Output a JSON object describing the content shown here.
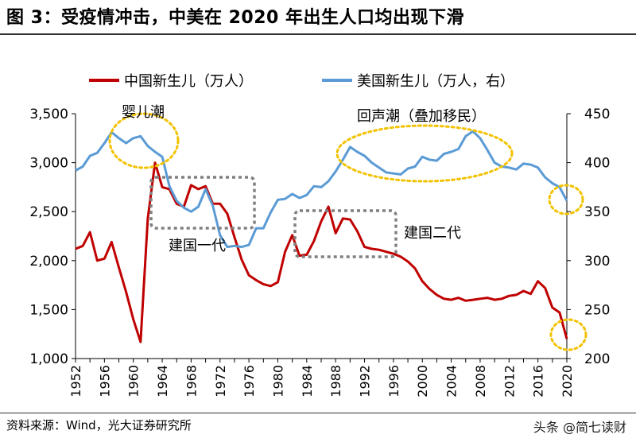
{
  "title": "图 3：受疫情冲击，中美在 2020 年出生人口均出现下滑",
  "source": "资料来源：Wind，光大证券研究所",
  "watermark": "头条 @简七读财",
  "colors": {
    "china": "#c00000",
    "us": "#5b9bd5",
    "highlight": "#f2c200",
    "box": "#808080"
  },
  "chart_data": {
    "type": "line",
    "x": [
      1952,
      1953,
      1954,
      1955,
      1956,
      1957,
      1958,
      1959,
      1960,
      1961,
      1962,
      1963,
      1964,
      1965,
      1966,
      1967,
      1968,
      1969,
      1970,
      1971,
      1972,
      1973,
      1974,
      1975,
      1976,
      1977,
      1978,
      1979,
      1980,
      1981,
      1982,
      1983,
      1984,
      1985,
      1986,
      1987,
      1988,
      1989,
      1990,
      1991,
      1992,
      1993,
      1994,
      1995,
      1996,
      1997,
      1998,
      1999,
      2000,
      2001,
      2002,
      2003,
      2004,
      2005,
      2006,
      2007,
      2008,
      2009,
      2010,
      2011,
      2012,
      2013,
      2014,
      2015,
      2016,
      2017,
      2018,
      2019,
      2020
    ],
    "x_ticks": [
      "1952",
      "1956",
      "1960",
      "1964",
      "1968",
      "1972",
      "1976",
      "1980",
      "1984",
      "1988",
      "1992",
      "1996",
      "2000",
      "2004",
      "2008",
      "2012",
      "2016",
      "2020"
    ],
    "y_left": {
      "ticks": [
        "1,000",
        "1,500",
        "2,000",
        "2,500",
        "3,000",
        "3,500"
      ],
      "lim": [
        1000,
        3500
      ]
    },
    "y_right": {
      "ticks": [
        "200",
        "250",
        "300",
        "350",
        "400",
        "450"
      ],
      "lim": [
        200,
        450
      ]
    },
    "series": [
      {
        "name": "中国新生儿（万人）",
        "axis": "left",
        "values": [
          2120,
          2150,
          2290,
          2000,
          2020,
          2190,
          1930,
          1680,
          1400,
          1170,
          2430,
          3000,
          2750,
          2730,
          2580,
          2550,
          2770,
          2730,
          2760,
          2580,
          2580,
          2480,
          2240,
          2010,
          1850,
          1800,
          1760,
          1740,
          1780,
          2090,
          2260,
          2050,
          2060,
          2200,
          2400,
          2550,
          2280,
          2430,
          2420,
          2300,
          2140,
          2120,
          2110,
          2090,
          2070,
          2040,
          1990,
          1920,
          1790,
          1710,
          1650,
          1610,
          1600,
          1620,
          1590,
          1600,
          1610,
          1620,
          1600,
          1610,
          1640,
          1650,
          1690,
          1660,
          1790,
          1720,
          1520,
          1470,
          1200
        ]
      },
      {
        "name": "美国新生儿（万人，右）",
        "axis": "right",
        "values": [
          392,
          396,
          407,
          410,
          420,
          431,
          425,
          420,
          425,
          427,
          417,
          411,
          406,
          376,
          361,
          354,
          350,
          355,
          373,
          356,
          326,
          314,
          315,
          314,
          316,
          333,
          333,
          349,
          362,
          363,
          368,
          364,
          367,
          376,
          375,
          381,
          391,
          403,
          416,
          411,
          407,
          400,
          395,
          390,
          389,
          388,
          394,
          396,
          406,
          403,
          402,
          409,
          411,
          414,
          427,
          432,
          425,
          413,
          400,
          396,
          395,
          393,
          399,
          398,
          395,
          385,
          379,
          375,
          361
        ]
      }
    ],
    "annotations": [
      "婴儿潮",
      "回声潮（叠加移民）",
      "建国一代",
      "建国二代"
    ]
  }
}
